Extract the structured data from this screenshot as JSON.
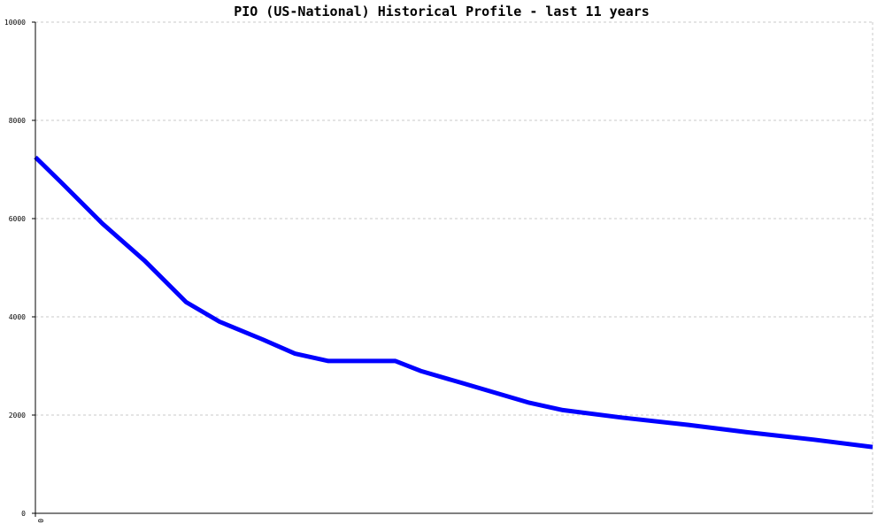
{
  "chart_data": {
    "type": "line",
    "title": "PIO (US-National) Historical Profile - last 11 years",
    "xlabel": "",
    "ylabel": "",
    "x_tick_labels": [
      "0"
    ],
    "y_tick_labels": [
      "0",
      "2000",
      "4000",
      "6000",
      "8000",
      "10000"
    ],
    "ylim": [
      0,
      10000
    ],
    "xlim": [
      0,
      1
    ],
    "grid": true,
    "legend": "none",
    "series": [
      {
        "color": "#0000ff",
        "x": [
          0.0,
          0.03,
          0.08,
          0.13,
          0.18,
          0.22,
          0.27,
          0.31,
          0.35,
          0.4,
          0.43,
          0.46,
          0.51,
          0.55,
          0.59,
          0.63,
          0.7,
          0.78,
          0.85,
          0.93,
          1.0
        ],
        "y": [
          7250,
          6750,
          5900,
          5150,
          4300,
          3900,
          3550,
          3250,
          3100,
          3100,
          3100,
          2900,
          2650,
          2450,
          2250,
          2100,
          1950,
          1800,
          1650,
          1500,
          1350
        ]
      }
    ]
  }
}
